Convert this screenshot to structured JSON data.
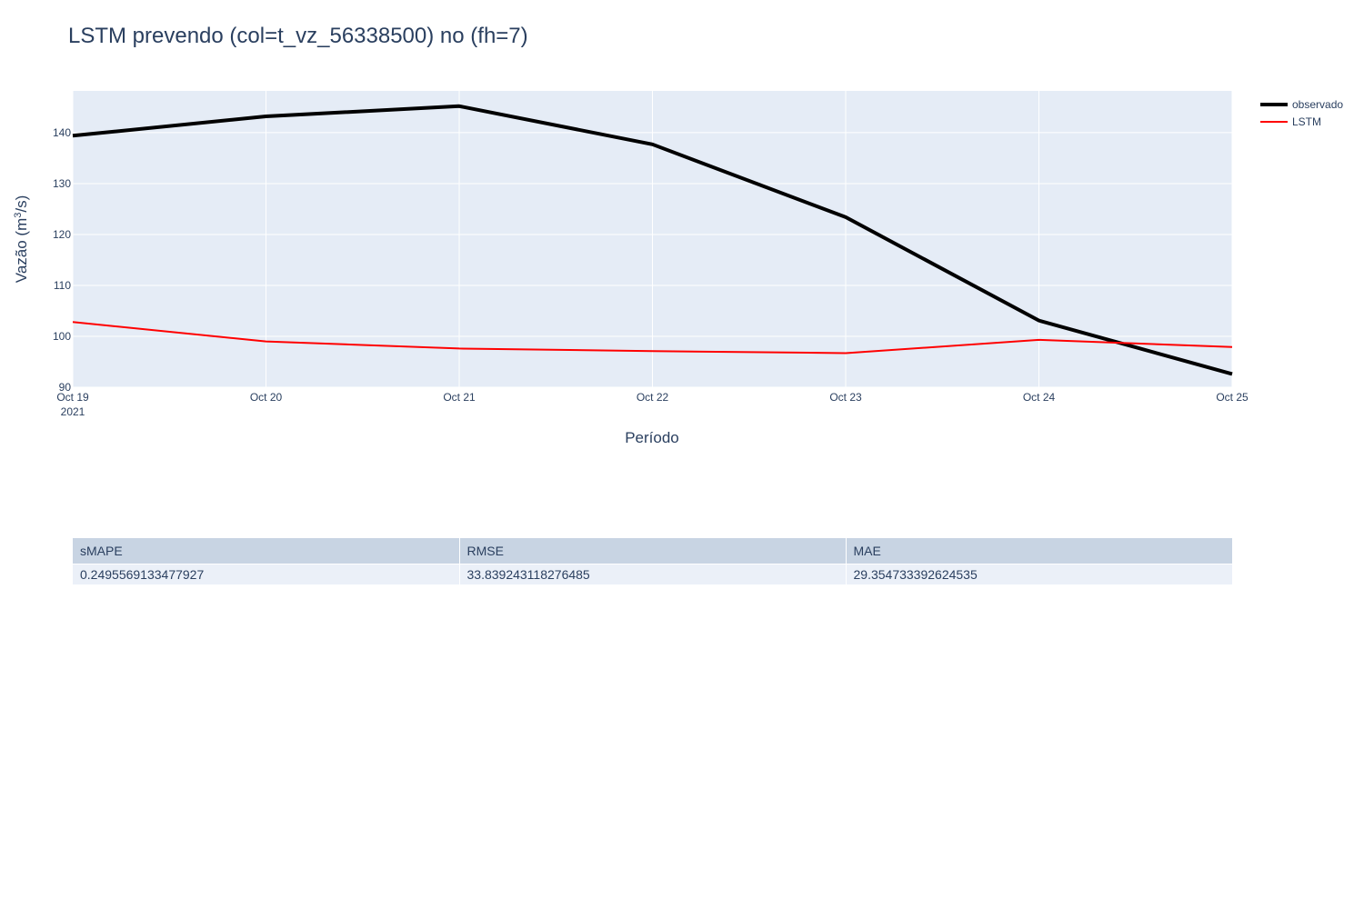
{
  "title": "LSTM prevendo (col=t_vz_56338500) no (fh=7)",
  "chart_data": {
    "type": "line",
    "title": "LSTM prevendo (col=t_vz_56338500) no (fh=7)",
    "xlabel": "Período",
    "ylabel_main": "Vazão (m",
    "ylabel_sup": "3",
    "ylabel_tail": "/s)",
    "x": [
      "2021-10-19",
      "2021-10-20",
      "2021-10-21",
      "2021-10-22",
      "2021-10-23",
      "2021-10-24",
      "2021-10-25"
    ],
    "x_tick_labels": [
      "Oct 19",
      "Oct 20",
      "Oct 21",
      "Oct 22",
      "Oct 23",
      "Oct 24",
      "Oct 25"
    ],
    "x_tick_year": "2021",
    "y_ticks": [
      90,
      100,
      110,
      120,
      130,
      140
    ],
    "ylim": [
      90,
      148.2
    ],
    "grid": true,
    "legend_position": "top-right",
    "series": [
      {
        "name": "observado",
        "color": "#000000",
        "values": [
          139.4,
          143.2,
          145.2,
          137.7,
          123.4,
          103.1,
          92.6
        ]
      },
      {
        "name": "LSTM",
        "color": "#ff0000",
        "values": [
          102.8,
          99.0,
          97.6,
          97.1,
          96.7,
          99.3,
          97.9
        ]
      }
    ]
  },
  "table": {
    "headers": [
      "sMAPE",
      "RMSE",
      "MAE"
    ],
    "rows": [
      [
        "0.2495569133477927",
        "33.839243118276485",
        "29.354733392624535"
      ]
    ]
  }
}
